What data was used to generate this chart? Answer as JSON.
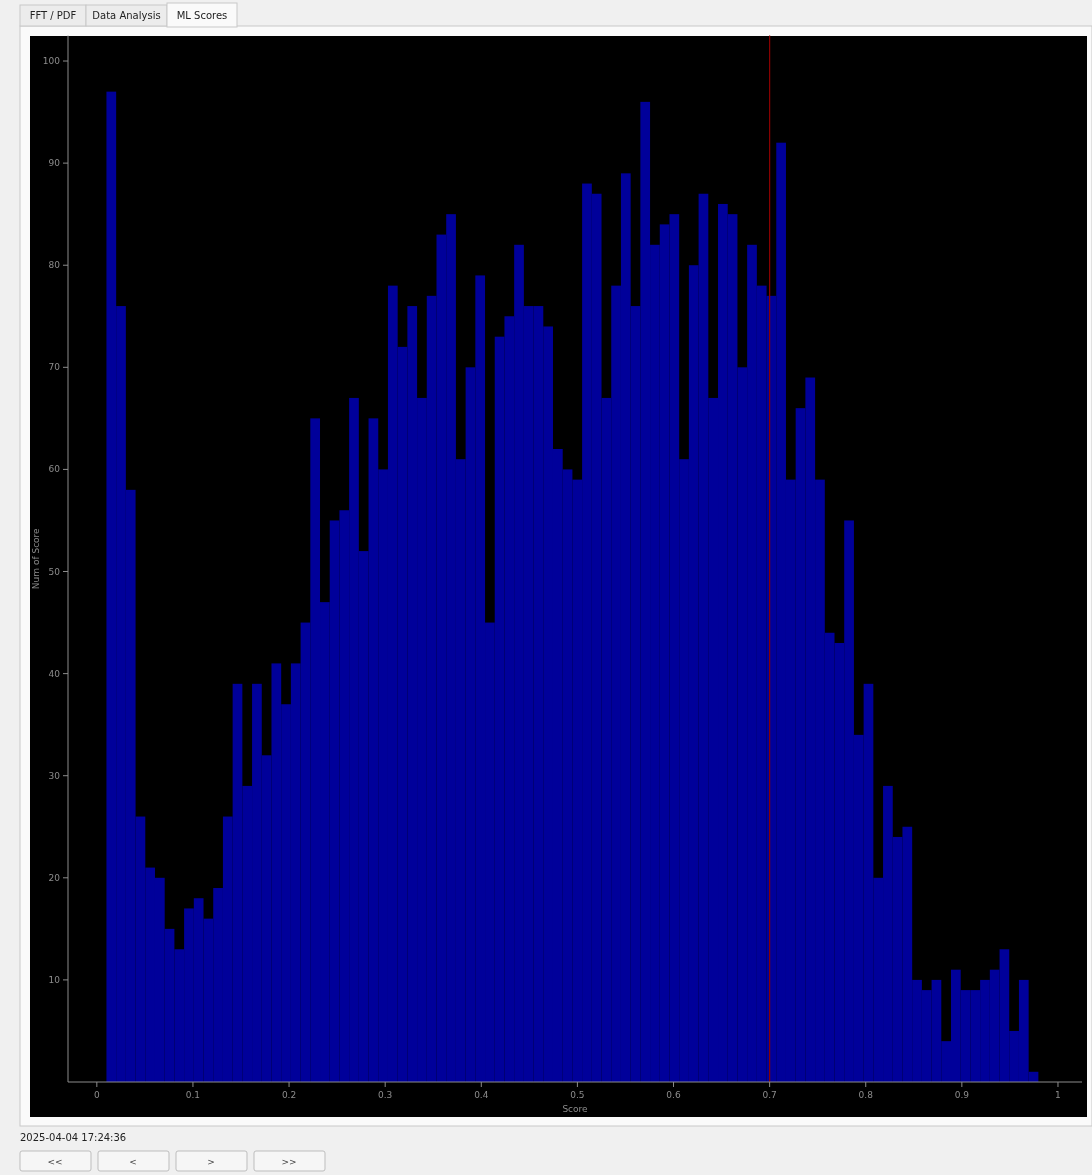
{
  "chart_data": {
    "type": "histogram",
    "xlabel": "Score",
    "ylabel": "Num of Score",
    "bins": [
      0.01,
      0.0201,
      0.0302,
      0.0403,
      0.0504,
      0.0605,
      0.0706,
      0.0807,
      0.0908,
      0.1009,
      0.111,
      0.1211,
      0.1312,
      0.1413,
      0.1514,
      0.1615,
      0.1716,
      0.1817,
      0.1918,
      0.2019,
      0.212,
      0.2221,
      0.2322,
      0.2423,
      0.2524,
      0.2625,
      0.2726,
      0.2827,
      0.2928,
      0.3029,
      0.313,
      0.3231,
      0.3332,
      0.3433,
      0.3534,
      0.3635,
      0.3736,
      0.3837,
      0.3938,
      0.4039,
      0.414,
      0.4241,
      0.4342,
      0.4443,
      0.4544,
      0.4645,
      0.4746,
      0.4847,
      0.4948,
      0.5049,
      0.515,
      0.5251,
      0.5352,
      0.5453,
      0.5554,
      0.5655,
      0.5756,
      0.5857,
      0.5958,
      0.6059,
      0.616,
      0.6261,
      0.6362,
      0.6463,
      0.6564,
      0.6665,
      0.6766,
      0.6867,
      0.6968,
      0.7069,
      0.717,
      0.7271,
      0.7372,
      0.7473,
      0.7574,
      0.7675,
      0.7776,
      0.7877,
      0.7978,
      0.8079,
      0.818,
      0.8281,
      0.8382,
      0.8483,
      0.8584,
      0.8685,
      0.8786,
      0.8887,
      0.8988,
      0.9089,
      0.919,
      0.9291,
      0.9392,
      0.9493,
      0.9594,
      0.9695,
      0.9796
    ],
    "values": [
      97,
      76,
      58,
      26,
      21,
      20,
      15,
      13,
      17,
      18,
      16,
      19,
      26,
      39,
      29,
      39,
      32,
      41,
      37,
      41,
      45,
      65,
      47,
      55,
      56,
      67,
      52,
      65,
      60,
      78,
      72,
      76,
      67,
      77,
      83,
      85,
      61,
      70,
      79,
      45,
      73,
      75,
      82,
      76,
      76,
      74,
      62,
      60,
      59,
      88,
      87,
      67,
      78,
      89,
      76,
      96,
      82,
      84,
      85,
      61,
      80,
      87,
      67,
      86,
      85,
      70,
      82,
      78,
      77,
      92,
      59,
      66,
      69,
      59,
      44,
      43,
      55,
      34,
      39,
      20,
      29,
      24,
      25,
      10,
      9,
      10,
      4,
      11,
      9,
      9,
      10,
      11,
      13,
      5,
      10,
      1
    ],
    "color": "#00009a",
    "xlim": [
      -0.03,
      1.025
    ],
    "ylim": [
      0,
      102.5
    ],
    "xticks": [
      0,
      0.1,
      0.2,
      0.3,
      0.4,
      0.5,
      0.6,
      0.7,
      0.8,
      0.9,
      1
    ],
    "yticks": [
      10,
      20,
      30,
      40,
      50,
      60,
      70,
      80,
      90,
      100
    ],
    "grid": false,
    "ref_lines": [
      {
        "axis": "x",
        "value": 0.7,
        "color": "#8b0000"
      }
    ],
    "annotations": [
      "FFT / PDF",
      "Data Analysis",
      "ML Scores",
      "2025-04-04 17:24:36",
      "<<",
      "<",
      ">",
      ">>"
    ]
  }
}
